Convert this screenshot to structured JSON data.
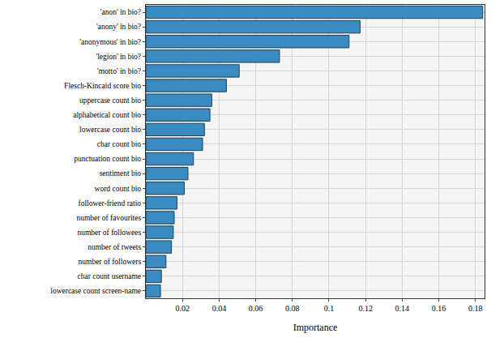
{
  "chart_data": {
    "type": "bar",
    "orientation": "horizontal",
    "x_label": "Importance",
    "categories": [
      "'anon' in bio?",
      "'anony' in bio?",
      "'anonymous' in bio?",
      "'legion' in bio?",
      "'motto' in bio?",
      "Flesch-Kincaid score bio",
      "uppercase count bio",
      "alphabetical count bio",
      "lowercase count bio",
      "char count bio",
      "punctuation count bio",
      "sentiment bio",
      "word count bio",
      "follower-friend ratio",
      "number of favourites",
      "number of followees",
      "number of tweets",
      "number of followers",
      "char count username",
      "lowercase count screen-name"
    ],
    "values": [
      0.184,
      0.117,
      0.111,
      0.073,
      0.051,
      0.044,
      0.036,
      0.035,
      0.032,
      0.031,
      0.026,
      0.023,
      0.021,
      0.017,
      0.0155,
      0.015,
      0.014,
      0.011,
      0.0085,
      0.008
    ],
    "color": "#3a8bc2",
    "xlim": [
      0,
      0.185
    ],
    "xticks": [
      0.02,
      0.04,
      0.06,
      0.08,
      0.1,
      0.12,
      0.14,
      0.16,
      0.18
    ],
    "grid": true
  }
}
